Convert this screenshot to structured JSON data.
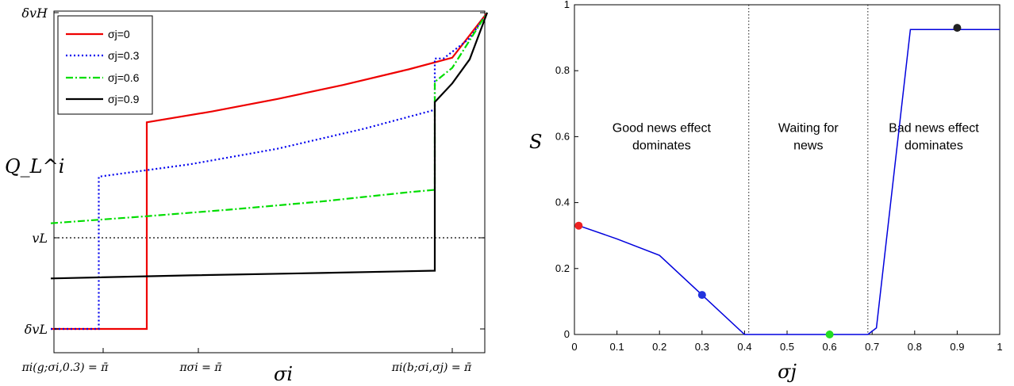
{
  "chart_data": [
    {
      "type": "line",
      "title": "",
      "xlabel": "σi",
      "ylabel": "Q_L^i",
      "x_ticks": [
        {
          "x": 0.0,
          "label": "πi(g;σi,0.3) = π̄"
        },
        {
          "x": 0.25,
          "label": "πσi = π̄"
        },
        {
          "x": 0.8,
          "label": "πi(b;σi,σj) = π̄"
        }
      ],
      "y_ticks": [
        {
          "y": 0.0,
          "label": "δvL"
        },
        {
          "y": 0.2765,
          "label": "vL"
        },
        {
          "y": 1.0,
          "label": "δvH"
        }
      ],
      "xlim": [
        -0.12,
        0.88
      ],
      "ylim": [
        -0.06,
        1.0
      ],
      "reference_line": {
        "y": 0.2765,
        "style": "dotted"
      },
      "legend_position": "top-left",
      "series": [
        {
          "name": "σj=0",
          "color": "#ee0000",
          "style": "solid",
          "points": [
            [
              -0.12,
              0.0
            ],
            [
              0.1,
              0.0
            ],
            [
              0.1,
              0.6534
            ],
            [
              0.25,
              0.6878
            ],
            [
              0.4,
              0.7272
            ],
            [
              0.55,
              0.7715
            ],
            [
              0.7,
              0.8208
            ],
            [
              0.8,
              0.8576
            ],
            [
              0.88,
              1.0
            ]
          ]
        },
        {
          "name": "σj=0.3",
          "color": "#0000ee",
          "style": "dotted",
          "points": [
            [
              -0.12,
              0.0
            ],
            [
              -0.01,
              0.0
            ],
            [
              -0.01,
              0.4814
            ],
            [
              0.2,
              0.5209
            ],
            [
              0.4,
              0.57
            ],
            [
              0.6,
              0.6338
            ],
            [
              0.76,
              0.6927
            ],
            [
              0.76,
              0.8551
            ],
            [
              0.78,
              0.8551
            ],
            [
              0.84,
              0.9189
            ],
            [
              0.88,
              1.0
            ]
          ]
        },
        {
          "name": "σj=0.6",
          "color": "#00dd00",
          "style": "dash-dot",
          "points": [
            [
              -0.12,
              0.3342
            ],
            [
              0.1,
              0.3563
            ],
            [
              0.3,
              0.3784
            ],
            [
              0.5,
              0.4029
            ],
            [
              0.7,
              0.4324
            ],
            [
              0.76,
              0.4398
            ],
            [
              0.76,
              0.7813
            ],
            [
              0.8,
              0.8256
            ],
            [
              0.88,
              1.0
            ]
          ]
        },
        {
          "name": "σj=0.9",
          "color": "#000000",
          "style": "solid",
          "points": [
            [
              -0.12,
              0.1597
            ],
            [
              0.2,
              0.1695
            ],
            [
              0.5,
              0.1769
            ],
            [
              0.76,
              0.1843
            ],
            [
              0.76,
              0.7174
            ],
            [
              0.8,
              0.7764
            ],
            [
              0.84,
              0.8526
            ],
            [
              0.88,
              1.0
            ]
          ]
        }
      ]
    },
    {
      "type": "line",
      "title": "",
      "xlabel": "σj",
      "ylabel": "S",
      "xlim": [
        0,
        1
      ],
      "ylim": [
        0,
        1
      ],
      "x_ticks": [
        "0",
        "0.1",
        "0.2",
        "0.3",
        "0.4",
        "0.5",
        "0.6",
        "0.7",
        "0.8",
        "0.9",
        "1"
      ],
      "y_ticks": [
        "0",
        "0.2",
        "0.4",
        "0.6",
        "0.8",
        "1"
      ],
      "vlines": [
        0.41,
        0.69
      ],
      "annotations": [
        {
          "x": 0.205,
          "y": 0.6,
          "lines": [
            "Good news effect",
            "dominates"
          ]
        },
        {
          "x": 0.55,
          "y": 0.6,
          "lines": [
            "Waiting for",
            "news"
          ]
        },
        {
          "x": 0.845,
          "y": 0.6,
          "lines": [
            "Bad news effect",
            "dominates"
          ]
        }
      ],
      "series": [
        {
          "name": "",
          "color": "#0000dd",
          "points": [
            [
              0.01,
              0.33
            ],
            [
              0.1,
              0.29
            ],
            [
              0.2,
              0.24
            ],
            [
              0.3,
              0.12
            ],
            [
              0.4,
              0.0
            ],
            [
              0.69,
              0.0
            ],
            [
              0.71,
              0.02
            ],
            [
              0.79,
              0.925
            ],
            [
              1.0,
              0.925
            ]
          ]
        }
      ],
      "markers": [
        {
          "x": 0.01,
          "y": 0.33,
          "color": "#ee2222"
        },
        {
          "x": 0.3,
          "y": 0.12,
          "color": "#2233dd"
        },
        {
          "x": 0.6,
          "y": 0.0,
          "color": "#22dd22"
        },
        {
          "x": 0.9,
          "y": 0.93,
          "color": "#222222"
        }
      ]
    }
  ]
}
